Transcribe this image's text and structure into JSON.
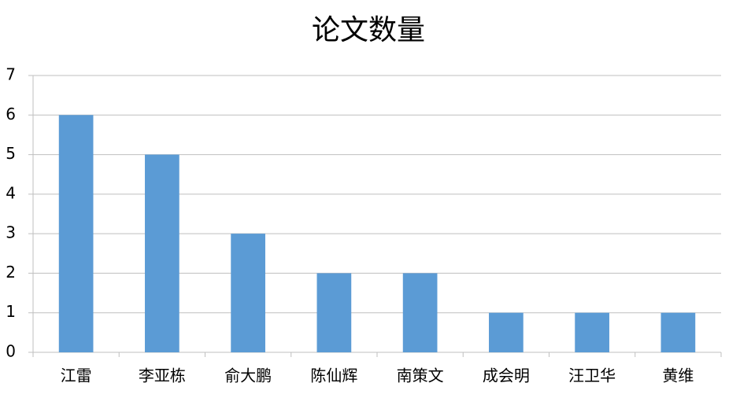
{
  "chart_data": {
    "type": "bar",
    "title": "论文数量",
    "categories": [
      "江雷",
      "李亚栋",
      "俞大鹏",
      "陈仙辉",
      "南策文",
      "成会明",
      "汪卫华",
      "黄维"
    ],
    "values": [
      6,
      5,
      3,
      2,
      2,
      1,
      1,
      1
    ],
    "color": "#5b9bd5",
    "ylim": [
      0,
      7
    ],
    "yticks": [
      0,
      1,
      2,
      3,
      4,
      5,
      6,
      7
    ],
    "grid": true
  }
}
